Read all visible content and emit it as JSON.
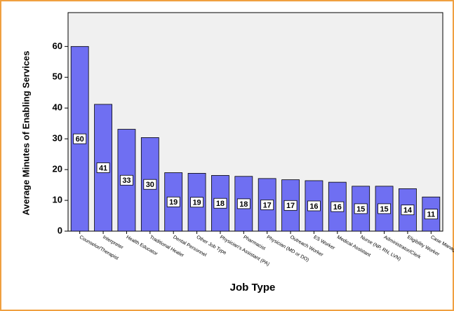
{
  "chart_data": {
    "type": "bar",
    "x_label": "Job Type",
    "y_label": "Average Minutes of Enabling Services",
    "categories": [
      "Counselor/Therapist",
      "Interpreter",
      "Health Educator",
      "Traditional Healer",
      "Dental Personnel",
      "Other Job Type",
      "Physician's Assistant (PA)",
      "Pharmacist",
      "Physician (MD or DO)",
      "Outreach Worker",
      "ES Worker",
      "Medical Assistant",
      "Nurse (NP, RN, LVN)",
      "Administrator/Clerk",
      "Eligibility Worker",
      "Case Manager"
    ],
    "values": [
      60,
      41.2,
      33.1,
      30.4,
      19.0,
      18.8,
      18.1,
      17.8,
      17.1,
      16.7,
      16.4,
      15.9,
      14.6,
      14.6,
      13.8,
      11.1
    ],
    "value_labels": [
      "60",
      "41",
      "33",
      "30",
      "19",
      "19",
      "18",
      "18",
      "17",
      "17",
      "16",
      "16",
      "15",
      "15",
      "14",
      "11"
    ],
    "color": "#6f6ff2",
    "ylim": [
      0,
      71
    ],
    "yticks": [
      0,
      10,
      20,
      30,
      40,
      50,
      60
    ]
  }
}
